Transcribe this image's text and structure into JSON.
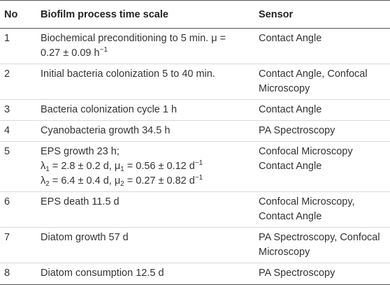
{
  "headers": {
    "no": "No",
    "process": "Biofilm process time scale",
    "sensor": "Sensor"
  },
  "rows": [
    {
      "no": "1",
      "process_lines": [
        "Biochemical preconditioning to 5 min. μ =",
        "0.27 ± 0.09 h−1"
      ],
      "sensor_lines": [
        "Contact Angle"
      ]
    },
    {
      "no": "2",
      "process_lines": [
        "Initial bacteria colonization 5 to 40 min."
      ],
      "sensor_lines": [
        "Contact Angle, Confocal",
        "Microscopy"
      ]
    },
    {
      "no": "3",
      "process_lines": [
        "Bacteria colonization cycle 1 h"
      ],
      "sensor_lines": [
        "Contact Angle"
      ]
    },
    {
      "no": "4",
      "process_lines": [
        "Cyanobacteria growth 34.5 h"
      ],
      "sensor_lines": [
        "PA Spectroscopy"
      ]
    },
    {
      "no": "5",
      "process_lines": [
        "EPS growth 23 h;",
        "λ1 = 2.8 ± 0.2 d, μ1 = 0.56 ± 0.12 d−1",
        "λ2 = 6.4 ± 0.4 d, μ2 = 0.27 ± 0.82 d−1"
      ],
      "sensor_lines": [
        "Confocal Microscopy",
        "Contact Angle"
      ]
    },
    {
      "no": "6",
      "process_lines": [
        "EPS death 11.5 d"
      ],
      "sensor_lines": [
        "Confocal Microscopy,",
        "Contact Angle"
      ]
    },
    {
      "no": "7",
      "process_lines": [
        "Diatom growth 57 d"
      ],
      "sensor_lines": [
        "PA Spectroscopy, Confocal",
        "Microscopy"
      ]
    },
    {
      "no": "8",
      "process_lines": [
        "Diatom consumption 12.5 d"
      ],
      "sensor_lines": [
        "PA Spectroscopy"
      ]
    }
  ]
}
